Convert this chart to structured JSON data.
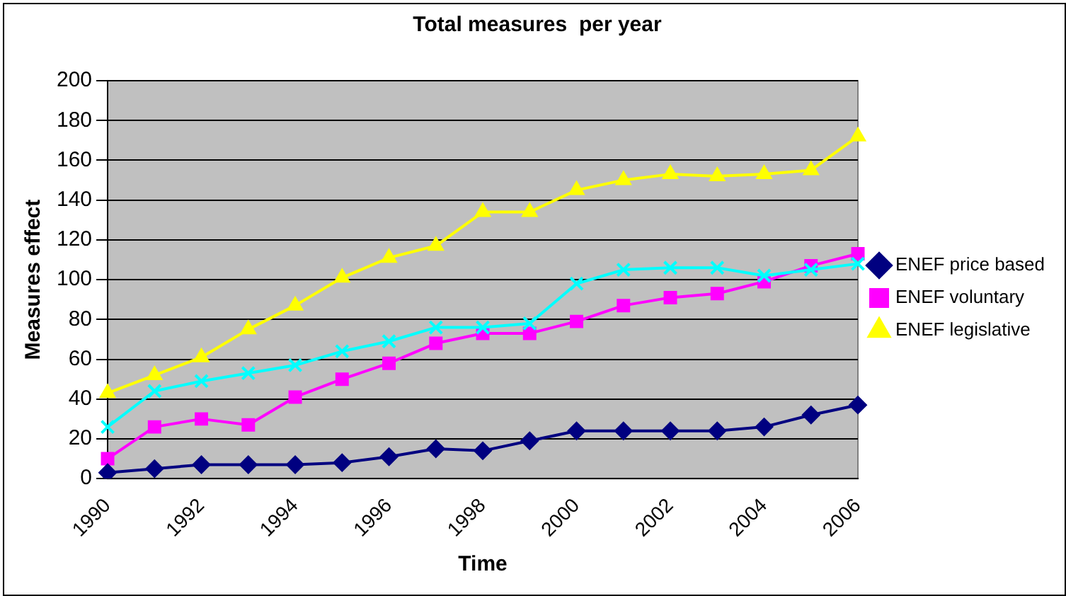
{
  "chart_data": {
    "type": "line",
    "title": "Total measures  per year",
    "xlabel": "Time",
    "ylabel": "Measures effect",
    "categories": [
      "1990",
      null,
      "1992",
      null,
      "1994",
      null,
      "1996",
      null,
      "1998",
      null,
      "2000",
      null,
      "2002",
      null,
      "2004",
      null,
      "2006"
    ],
    "series": [
      {
        "name": "ENEF price based",
        "color": "#000080",
        "marker": "diamond",
        "values": [
          3,
          5,
          7,
          7,
          7,
          8,
          11,
          15,
          14,
          19,
          24,
          24,
          24,
          24,
          26,
          32,
          37
        ]
      },
      {
        "name": "ENEF voluntary",
        "color": "#ff00ff",
        "marker": "square",
        "values": [
          10,
          26,
          30,
          27,
          41,
          50,
          58,
          68,
          73,
          73,
          79,
          87,
          91,
          93,
          99,
          107,
          113
        ]
      },
      {
        "name": "ENEF legislative",
        "color": "#ffff00",
        "marker": "triangle",
        "values": [
          43,
          52,
          61,
          75,
          87,
          101,
          111,
          117,
          134,
          134,
          145,
          150,
          153,
          152,
          153,
          155,
          172
        ]
      },
      {
        "color": "#00ffff",
        "marker": "cross",
        "values": [
          26,
          44,
          49,
          53,
          57,
          64,
          69,
          76,
          76,
          78,
          98,
          105,
          106,
          106,
          102,
          105,
          108
        ]
      }
    ],
    "ylim": [
      0,
      200
    ],
    "yticks": [
      0,
      20,
      40,
      60,
      80,
      100,
      120,
      140,
      160,
      180,
      200
    ],
    "grid": "y",
    "legend": "right"
  }
}
